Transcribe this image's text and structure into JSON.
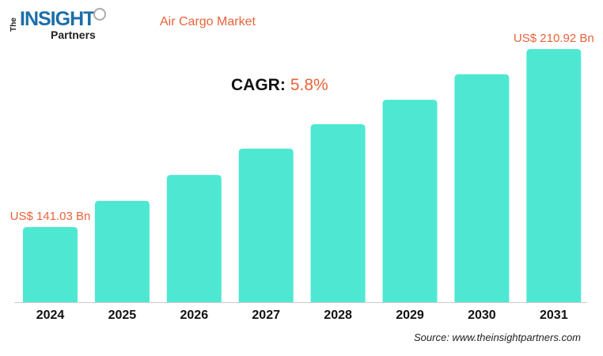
{
  "logo": {
    "text": "The INSIGHT Partners"
  },
  "title": "Air Cargo Market",
  "cagr": {
    "label": "CAGR:",
    "value": "5.8%"
  },
  "source": "Source: www.theinsightpartners.com",
  "chart_data": {
    "type": "bar",
    "title": "Air Cargo Market",
    "categories": [
      "2024",
      "2025",
      "2026",
      "2027",
      "2028",
      "2029",
      "2030",
      "2031"
    ],
    "values": [
      141.03,
      151.3,
      161.5,
      171.8,
      181.4,
      191.0,
      201.0,
      210.92
    ],
    "data_labels": {
      "0": "US$ 141.03 Bn",
      "7": "US$ 210.92 Bn"
    },
    "ylim": [
      111.5,
      210.92
    ],
    "unit": "US$ Bn",
    "grid": false,
    "bar_color": "#4ee8d2",
    "label_color": "#e8633a"
  }
}
